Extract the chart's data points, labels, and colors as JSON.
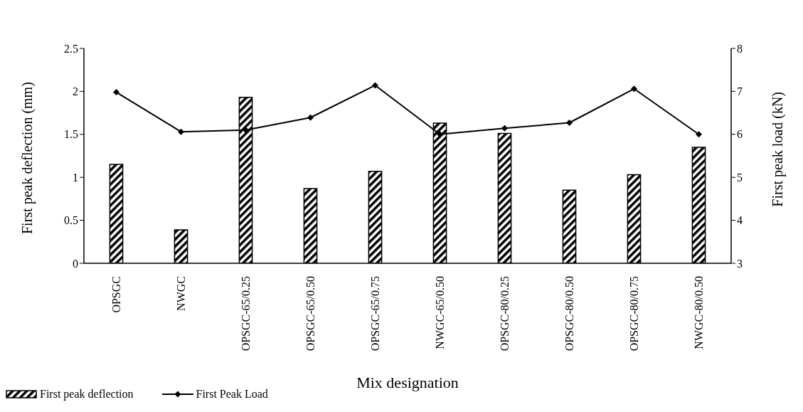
{
  "chart_data": {
    "type": "bar",
    "xlabel": "Mix designation",
    "ylabel": "First peak deflection (mm)",
    "y2label": "First peak load (kN)",
    "categories": [
      "OPSGC",
      "NWGC",
      "OPSGC-65/0.25",
      "OPSGC-65/0.50",
      "OPSGC-65/0.75",
      "NWGC-65/0.50",
      "OPSGC-80/0.25",
      "OPSGC-80/0.50",
      "OPSGC-80/0.75",
      "NWGC-80/0.50"
    ],
    "series": [
      {
        "name": "First peak deflection",
        "color": "#000000",
        "values": [
          1.15,
          0.39,
          1.93,
          0.87,
          1.07,
          1.63,
          1.51,
          0.85,
          1.03,
          1.35
        ]
      },
      {
        "name": "First Peak Load",
        "type": "line",
        "axis": "y2",
        "color": "#000000",
        "marker": "diamond",
        "values": [
          6.98,
          6.06,
          6.1,
          6.39,
          7.14,
          6.0,
          6.14,
          6.27,
          7.06,
          6.0
        ]
      }
    ],
    "ylim": [
      0,
      2.5
    ],
    "yticks": [
      0,
      0.5,
      1,
      1.5,
      2,
      2.5
    ],
    "y2lim": [
      3,
      8
    ],
    "y2ticks": [
      3,
      4,
      5,
      6,
      7,
      8
    ],
    "legend": "bottom left"
  }
}
